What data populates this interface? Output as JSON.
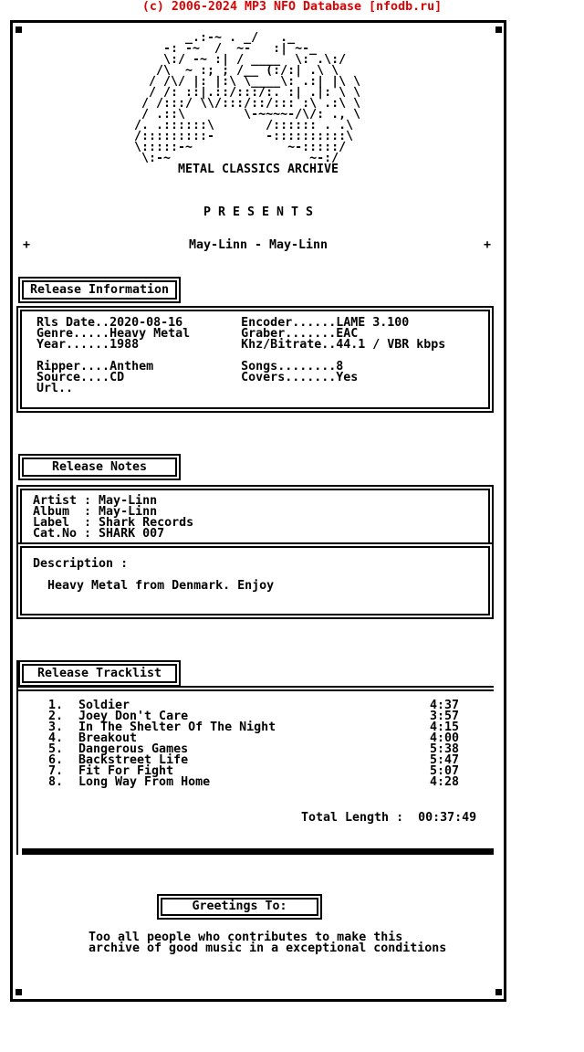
{
  "colors": {
    "header_red": "#e00000",
    "text": "#000000",
    "background": "#ffffff"
  },
  "header": {
    "text": "(c) 2006-2024 MP3 NFO Database [nfodb.ru]"
  },
  "logo": {
    "art_lines": [
      "       _.:-~ . _/   ._",
      "    -: -~  /  ~-   :| ~-_",
      "    \\:/ -~ :| / ____  \\: .\\:/",
      "   /\\  ~ :; ; /__ (:/:| .\\ \\",
      "  / /\\/ |: |:\\ \\____\\: .:| |\\ \\",
      "  / /: ::|.::/:::/:. :| .|: \\ \\",
      " / /:::/ \\\\/:::/::/::: :\\ .:\\ \\",
      " / .::\\        \\-~~~~-/\\/: ., \\",
      "/. .::::::\\       /:::::: . .\\",
      "/:::::::::-       -::::::::::\\",
      "\\:::::-~             ~-:::::/",
      " \\:-~                   ~-:/"
    ],
    "caption": "METAL CLASSICS ARCHIVE"
  },
  "intro": {
    "presents": "P R E S E N T S",
    "plus": "+",
    "title": "May-Linn - May-Linn"
  },
  "release_information": {
    "tab_label": "Release Information",
    "fields": {
      "rls_date": "2020-08-16",
      "genre": "Heavy Metal",
      "year": "1988",
      "ripper": "Anthem",
      "source": "CD",
      "url": "",
      "encoder": "LAME 3.100",
      "graber": "EAC",
      "khz_bitrate": "44.1 / VBR kbps",
      "songs": "8",
      "covers": "Yes"
    },
    "lines": [
      "  Rls Date..2020-08-16        Encoder......LAME 3.100",
      "  Genre.....Heavy Metal       Graber.......EAC",
      "  Year......1988              Khz/Bitrate..44.1 / VBR kbps",
      "",
      "  Ripper....Anthem            Songs........8",
      "  Source....CD                Covers.......Yes",
      "  Url.."
    ]
  },
  "release_notes": {
    "tab_label": "Release Notes",
    "artist": "May-Linn",
    "album": "May-Linn",
    "label": "Shark Records",
    "cat_no": "SHARK 007",
    "lines": [
      "Artist : May-Linn",
      "Album  : May-Linn",
      "Label  : Shark Records",
      "Cat.No : SHARK 007"
    ],
    "description_label": "Description :",
    "description": "Heavy Metal from Denmark. Enjoy",
    "description_lines": [
      "Description :",
      "",
      "  Heavy Metal from Denmark. Enjoy"
    ]
  },
  "release_tracklist": {
    "tab_label": "Release Tracklist",
    "tracks": [
      {
        "num": "1.",
        "title": "Soldier",
        "time": "4:37"
      },
      {
        "num": "2.",
        "title": "Joey Don't Care",
        "time": "3:57"
      },
      {
        "num": "3.",
        "title": "In The Shelter Of The Night",
        "time": "4:15"
      },
      {
        "num": "4.",
        "title": "Breakout",
        "time": "4:00"
      },
      {
        "num": "5.",
        "title": "Dangerous Games",
        "time": "5:38"
      },
      {
        "num": "6.",
        "title": "Backstreet Life",
        "time": "5:47"
      },
      {
        "num": "7.",
        "title": "Fit For Fight",
        "time": "5:07"
      },
      {
        "num": "8.",
        "title": "Long Way From Home",
        "time": "4:28"
      }
    ],
    "total_label": "Total Length :",
    "total_time": "00:37:49"
  },
  "greetings": {
    "box_label": "Greetings To:",
    "lines": [
      "Too all people who contributes to make this",
      "archive of good music in a exceptional conditions"
    ]
  }
}
